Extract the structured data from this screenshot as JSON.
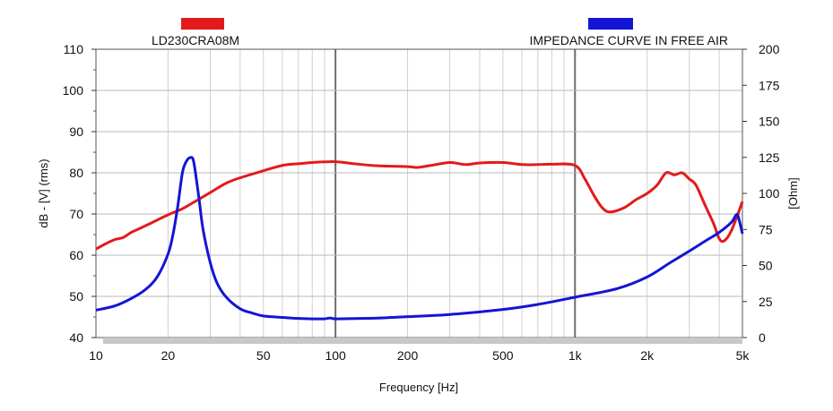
{
  "chart_data": {
    "type": "line",
    "title": "",
    "xlabel": "Frequency [Hz]",
    "ylabel_left": "dB - [V]  (rms)",
    "ylabel_right": "[Ohm]",
    "x_scale": "log",
    "xlim": [
      10,
      5000
    ],
    "ylim_left": [
      40,
      110
    ],
    "ylim_right": [
      0,
      200
    ],
    "grid": true,
    "x_ticks": [
      {
        "value": 10,
        "label": "10"
      },
      {
        "value": 20,
        "label": "20"
      },
      {
        "value": 50,
        "label": "50"
      },
      {
        "value": 100,
        "label": "100"
      },
      {
        "value": 200,
        "label": "200"
      },
      {
        "value": 500,
        "label": "500"
      },
      {
        "value": 1000,
        "label": "1k"
      },
      {
        "value": 2000,
        "label": "2k"
      },
      {
        "value": 5000,
        "label": "5k"
      }
    ],
    "y_ticks_left": [
      40,
      50,
      60,
      70,
      80,
      90,
      100,
      110
    ],
    "y_ticks_right": [
      0,
      25,
      50,
      75,
      100,
      125,
      150,
      175,
      200
    ],
    "legend": [
      {
        "name": "LD230CRA08M",
        "color": "#e31a1a",
        "position": "top-left"
      },
      {
        "name": "IMPEDANCE CURVE IN FREE AIR",
        "color": "#1414d6",
        "position": "top-right"
      }
    ],
    "series": [
      {
        "name": "LD230CRA08M",
        "axis": "left",
        "color": "#e31a1a",
        "x": [
          10,
          11,
          12,
          13,
          14,
          15,
          17,
          20,
          23,
          25,
          30,
          35,
          40,
          50,
          60,
          70,
          80,
          100,
          120,
          150,
          200,
          220,
          250,
          300,
          350,
          400,
          500,
          600,
          700,
          800,
          1000,
          1100,
          1200,
          1300,
          1400,
          1600,
          1800,
          2000,
          2200,
          2400,
          2600,
          2800,
          3000,
          3200,
          3500,
          3800,
          4000,
          4200,
          4500,
          5000
        ],
        "values": [
          61.5,
          62.8,
          63.8,
          64.3,
          65.5,
          66.3,
          67.8,
          69.8,
          71.3,
          72.5,
          75.2,
          77.5,
          78.8,
          80.5,
          81.8,
          82.2,
          82.5,
          82.7,
          82.2,
          81.7,
          81.5,
          81.3,
          81.8,
          82.5,
          82.0,
          82.4,
          82.5,
          82.0,
          82.0,
          82.1,
          81.8,
          78.5,
          74.5,
          71.5,
          70.5,
          71.5,
          73.5,
          75.0,
          77.0,
          80.0,
          79.5,
          80.0,
          78.5,
          77.0,
          72.0,
          67.5,
          64.0,
          63.5,
          66.0,
          73.0
        ]
      },
      {
        "name": "IMPEDANCE CURVE IN FREE AIR",
        "axis": "right",
        "color": "#1414d6",
        "x": [
          10,
          12,
          14,
          16,
          18,
          20,
          21,
          22,
          23,
          24,
          25,
          25.5,
          26,
          27,
          28,
          30,
          32,
          35,
          40,
          45,
          50,
          60,
          70,
          80,
          90,
          95,
          100,
          120,
          150,
          200,
          300,
          500,
          700,
          1000,
          1500,
          2000,
          2500,
          3000,
          3500,
          4000,
          4500,
          4700,
          4800,
          5000
        ],
        "values": [
          19,
          22,
          27,
          33,
          42,
          58,
          72,
          92,
          115,
          123,
          125,
          123,
          115,
          95,
          75,
          52,
          38,
          28,
          20,
          17,
          15,
          14,
          13.3,
          13,
          13,
          13.6,
          13,
          13.2,
          13.5,
          14.5,
          16,
          19.5,
          23,
          28,
          34,
          42,
          52,
          60,
          67,
          73,
          80,
          85,
          84,
          72
        ]
      }
    ]
  }
}
